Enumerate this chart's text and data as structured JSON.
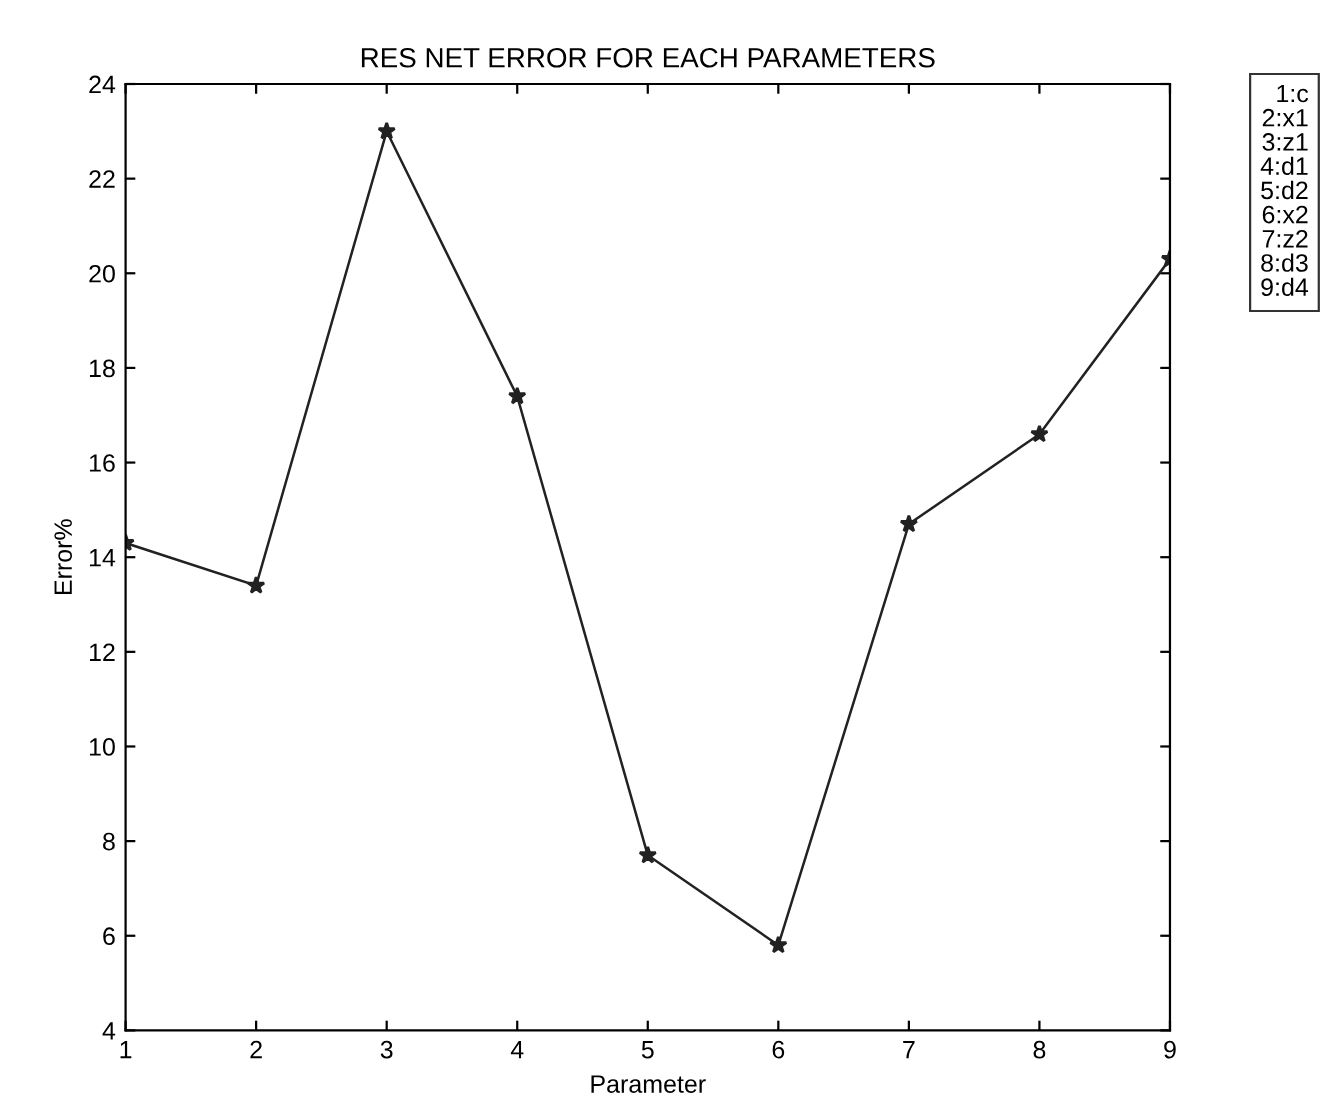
{
  "chart_data": {
    "type": "line",
    "title": "RES NET ERROR FOR EACH PARAMETERS",
    "xlabel": "Parameter",
    "ylabel": "Error%",
    "x": [
      1,
      2,
      3,
      4,
      5,
      6,
      7,
      8,
      9
    ],
    "series": [
      {
        "color": "#222222",
        "values": [
          14.3,
          13.4,
          23.0,
          17.4,
          7.7,
          5.8,
          14.7,
          16.6,
          20.3
        ]
      }
    ],
    "xlim": [
      1,
      9
    ],
    "xticks": [
      1,
      2,
      3,
      4,
      5,
      6,
      7,
      8,
      9
    ],
    "ylim": [
      4,
      24
    ],
    "yticks": [
      4,
      6,
      8,
      10,
      12,
      14,
      16,
      18,
      20,
      22,
      24
    ],
    "marker": "star",
    "line_style": "solid",
    "grid": false,
    "annotations": [
      "1:c",
      "2:x1",
      "3:z1",
      "4:d1",
      "5:d2",
      "6:x2",
      "7:z2",
      "8:d3",
      "9:d4"
    ]
  }
}
